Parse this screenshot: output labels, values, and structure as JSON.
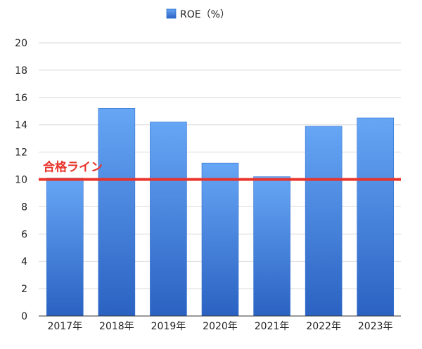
{
  "chart_data": {
    "type": "bar",
    "categories": [
      "2017年",
      "2018年",
      "2019年",
      "2020年",
      "2021年",
      "2022年",
      "2023年"
    ],
    "series": [
      {
        "name": "ROE（%）",
        "values": [
          10.1,
          15.2,
          14.2,
          11.2,
          10.2,
          13.9,
          14.5
        ]
      }
    ],
    "y_ticks": [
      0,
      2,
      4,
      6,
      8,
      10,
      12,
      14,
      16,
      18,
      20
    ],
    "ylim": [
      0,
      20
    ],
    "grid": true,
    "legend": "top-center",
    "reference_line": {
      "label": "合格ライン",
      "value": 10
    },
    "colors": {
      "bar_top": "#66a6f5",
      "bar_bottom": "#2b62c2",
      "bar_edge": "#2f6fd0",
      "reference_line": "#e8332a",
      "grid": "#d9d9d9",
      "axis": "#333333",
      "text": "#222222"
    }
  }
}
